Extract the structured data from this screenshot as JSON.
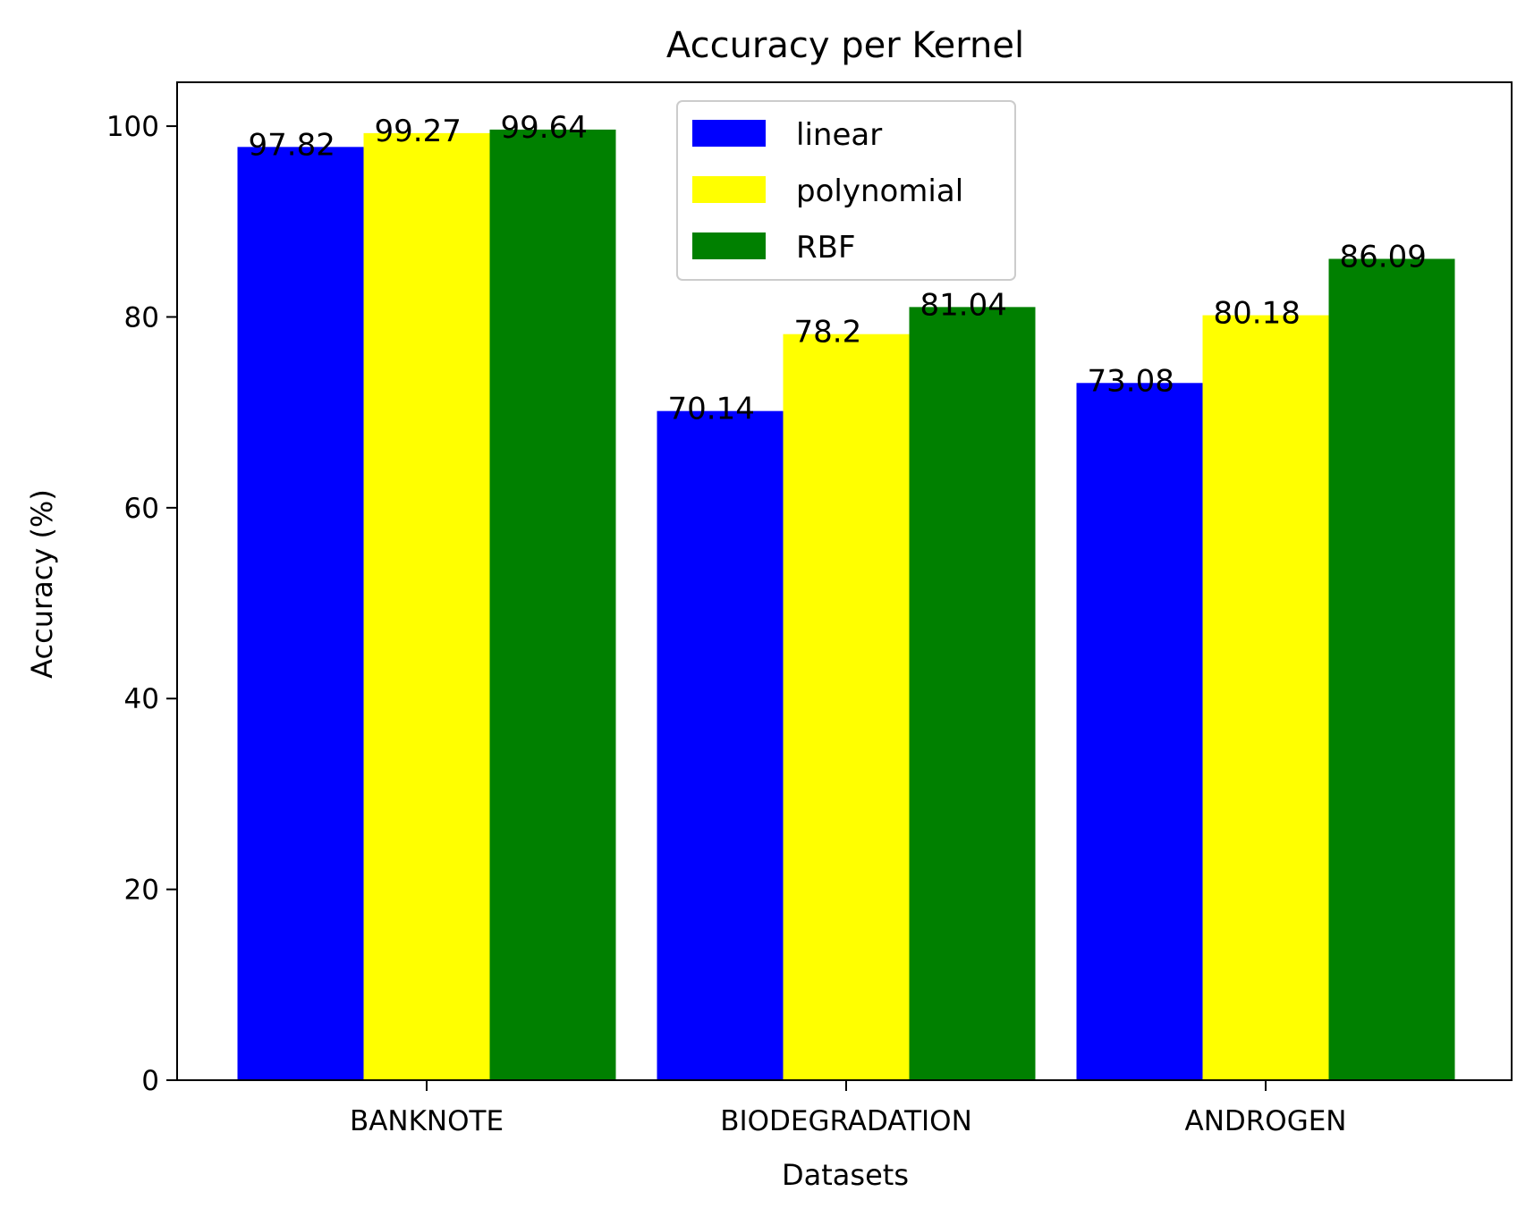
{
  "chart_data": {
    "type": "bar",
    "title": "Accuracy per Kernel",
    "xlabel": "Datasets",
    "ylabel": "Accuracy (%)",
    "categories": [
      "BANKNOTE",
      "BIODEGRADATION",
      "ANDROGEN"
    ],
    "series": [
      {
        "name": "linear",
        "color": "#0000ff",
        "values": [
          97.82,
          70.14,
          73.08
        ],
        "labels": [
          "97.82",
          "70.14",
          "73.08"
        ]
      },
      {
        "name": "polynomial",
        "color": "#ffff00",
        "values": [
          99.27,
          78.2,
          80.18
        ],
        "labels": [
          "99.27",
          "78.2",
          "80.18"
        ]
      },
      {
        "name": "RBF",
        "color": "#008000",
        "values": [
          99.64,
          81.04,
          86.09
        ],
        "labels": [
          "99.64",
          "81.04",
          "86.09"
        ]
      }
    ],
    "ylim": [
      0,
      104.6
    ],
    "yticks": [
      "0",
      "20",
      "40",
      "60",
      "80",
      "100"
    ],
    "grid": false,
    "legend_position": "top-center"
  }
}
